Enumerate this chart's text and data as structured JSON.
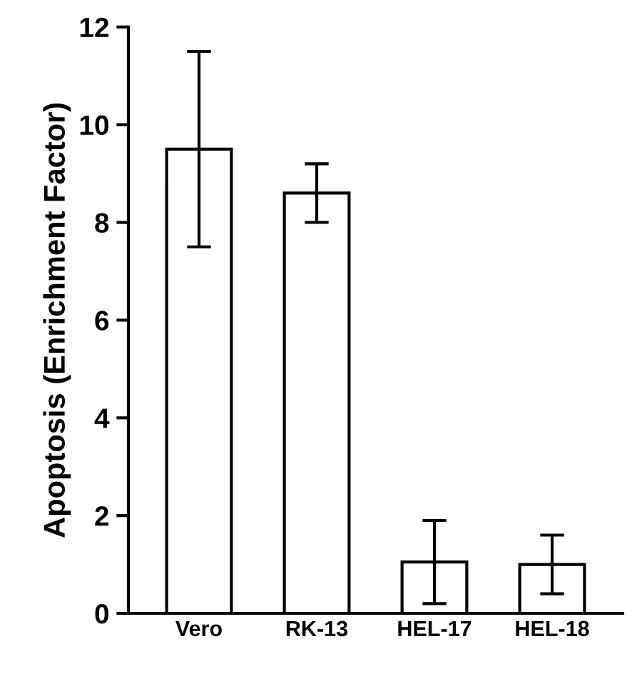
{
  "chart_data": {
    "type": "bar",
    "ylabel": "Apoptosis (Enrichment Factor)",
    "categories": [
      "Vero",
      "RK-13",
      "HEL-17",
      "HEL-18"
    ],
    "values": [
      9.5,
      8.6,
      1.05,
      1.0
    ],
    "errors": [
      2.0,
      0.6,
      0.85,
      0.6
    ],
    "color": "#ffffff",
    "ylim": [
      0,
      12
    ],
    "yticks": [
      0,
      2,
      4,
      6,
      8,
      10,
      12
    ],
    "grid": false
  }
}
